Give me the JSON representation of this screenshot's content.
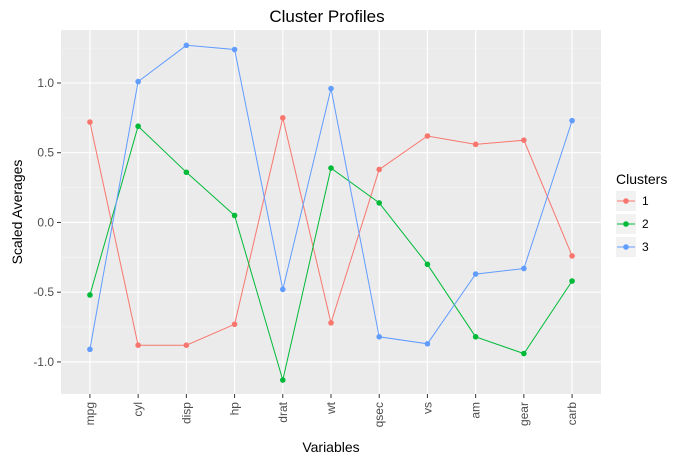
{
  "chart_data": {
    "type": "line",
    "title": "Cluster Profiles",
    "xlabel": "Variables",
    "ylabel": "Scaled Averages",
    "categories": [
      "mpg",
      "cyl",
      "disp",
      "hp",
      "drat",
      "wt",
      "qsec",
      "vs",
      "am",
      "gear",
      "carb"
    ],
    "yticks": [
      -1.0,
      -0.5,
      0.0,
      0.5,
      1.0
    ],
    "ytick_labels": [
      "-1.0",
      "-0.5",
      "0.0",
      "0.5",
      "1.0"
    ],
    "ylim": [
      -1.23,
      1.38
    ],
    "grid": true,
    "legend_position": "right",
    "legend_title": "Clusters",
    "series": [
      {
        "name": "1",
        "color": "#F8766D",
        "values": [
          0.72,
          -0.88,
          -0.88,
          -0.73,
          0.75,
          -0.72,
          0.38,
          0.62,
          0.56,
          0.59,
          -0.24
        ]
      },
      {
        "name": "2",
        "color": "#00BA38",
        "values": [
          -0.52,
          0.69,
          0.36,
          0.05,
          -1.13,
          0.39,
          0.14,
          -0.3,
          -0.82,
          -0.94,
          -0.42
        ]
      },
      {
        "name": "3",
        "color": "#619CFF",
        "values": [
          -0.91,
          1.01,
          1.27,
          1.24,
          -0.48,
          0.96,
          -0.82,
          -0.87,
          -0.37,
          -0.33,
          0.73
        ]
      }
    ]
  }
}
